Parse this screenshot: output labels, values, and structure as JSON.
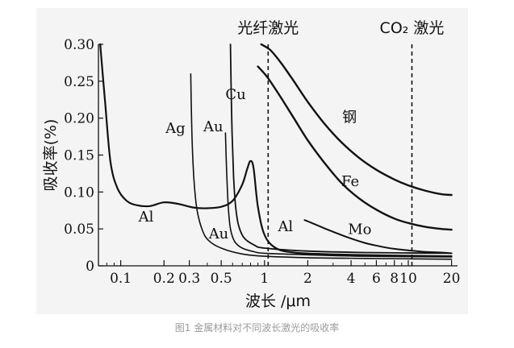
{
  "caption": "图1 金属材料对不同波长激光的吸收率",
  "chart_data": {
    "type": "line",
    "x_scale": "log",
    "xlabel": "波长 /μm",
    "ylabel": "吸收率(%)",
    "xlim": [
      0.07,
      22
    ],
    "ylim": [
      0,
      0.3
    ],
    "x_ticks": [
      {
        "value": 0.1,
        "label": "0.1"
      },
      {
        "value": 0.2,
        "label": "0.2"
      },
      {
        "value": 0.3,
        "label": "0.3"
      },
      {
        "value": 0.5,
        "label": "0.5"
      },
      {
        "value": 1,
        "label": "1"
      },
      {
        "value": 2,
        "label": "2"
      },
      {
        "value": 4,
        "label": "4"
      },
      {
        "value": 6,
        "label": "6"
      },
      {
        "value": 8,
        "label": "8"
      },
      {
        "value": 10,
        "label": "10"
      },
      {
        "value": 20,
        "label": "20"
      }
    ],
    "y_ticks": [
      {
        "value": 0,
        "label": "0"
      },
      {
        "value": 0.05,
        "label": "0.05"
      },
      {
        "value": 0.1,
        "label": "0.10"
      },
      {
        "value": 0.15,
        "label": "0.15"
      },
      {
        "value": 0.2,
        "label": "0.20"
      },
      {
        "value": 0.25,
        "label": "0.25"
      },
      {
        "value": 0.3,
        "label": "0.30"
      }
    ],
    "vlines": [
      {
        "x": 1.06,
        "label": "光纤激光"
      },
      {
        "x": 10.6,
        "label": "CO₂ 激光"
      }
    ],
    "series": [
      {
        "name": "钢",
        "x": [
          0.95,
          1.1,
          1.3,
          1.6,
          2,
          2.6,
          3.4,
          4.5,
          6,
          8,
          10,
          13,
          17,
          20
        ],
        "y": [
          0.3,
          0.292,
          0.275,
          0.25,
          0.222,
          0.193,
          0.168,
          0.147,
          0.13,
          0.117,
          0.109,
          0.102,
          0.097,
          0.096
        ]
      },
      {
        "name": "Fe",
        "x": [
          0.9,
          1.05,
          1.3,
          1.6,
          2,
          2.6,
          3.4,
          4.5,
          6,
          8,
          10,
          13,
          17,
          20
        ],
        "y": [
          0.27,
          0.255,
          0.228,
          0.2,
          0.17,
          0.14,
          0.113,
          0.092,
          0.076,
          0.064,
          0.058,
          0.053,
          0.05,
          0.049
        ]
      },
      {
        "name": "Mo",
        "x": [
          1.9,
          2.2,
          2.6,
          3.2,
          4,
          5,
          6.5,
          8,
          10,
          13,
          17,
          20
        ],
        "y": [
          0.062,
          0.057,
          0.051,
          0.044,
          0.037,
          0.031,
          0.026,
          0.023,
          0.021,
          0.019,
          0.018,
          0.017
        ]
      },
      {
        "name": "Al",
        "x": [
          0.072,
          0.078,
          0.085,
          0.095,
          0.11,
          0.13,
          0.16,
          0.2,
          0.25,
          0.32,
          0.4,
          0.5,
          0.6,
          0.7,
          0.76,
          0.8,
          0.84,
          0.9,
          1.0,
          1.2,
          1.6,
          2.5,
          4,
          8,
          20
        ],
        "y": [
          0.3,
          0.22,
          0.14,
          0.105,
          0.088,
          0.082,
          0.081,
          0.086,
          0.084,
          0.079,
          0.078,
          0.08,
          0.088,
          0.11,
          0.132,
          0.142,
          0.132,
          0.08,
          0.042,
          0.024,
          0.018,
          0.016,
          0.015,
          0.014,
          0.013
        ]
      },
      {
        "name": "Ag",
        "x": [
          0.307,
          0.31,
          0.315,
          0.325,
          0.34,
          0.37,
          0.41,
          0.5,
          0.7,
          1,
          2,
          5,
          20
        ],
        "y": [
          0.26,
          0.21,
          0.16,
          0.11,
          0.075,
          0.048,
          0.034,
          0.024,
          0.016,
          0.013,
          0.011,
          0.01,
          0.009
        ]
      },
      {
        "name": "Au",
        "x": [
          0.535,
          0.545,
          0.56,
          0.58,
          0.62,
          0.7,
          0.85,
          1,
          2,
          5,
          20
        ],
        "y": [
          0.18,
          0.13,
          0.08,
          0.05,
          0.033,
          0.024,
          0.019,
          0.017,
          0.015,
          0.013,
          0.012
        ]
      },
      {
        "name": "Cu",
        "x": [
          0.58,
          0.585,
          0.595,
          0.61,
          0.63,
          0.66,
          0.72,
          0.85,
          1,
          2,
          5,
          20
        ],
        "y": [
          0.3,
          0.25,
          0.18,
          0.12,
          0.08,
          0.055,
          0.038,
          0.028,
          0.024,
          0.02,
          0.018,
          0.017
        ]
      }
    ],
    "annotations": [
      {
        "text": "钢",
        "x": 3.9,
        "y": 0.195
      },
      {
        "text": "Fe",
        "x": 3.95,
        "y": 0.108
      },
      {
        "text": "Mo",
        "x": 4.6,
        "y": 0.043
      },
      {
        "text": "Al",
        "x": 0.15,
        "y": 0.06
      },
      {
        "text": "Al",
        "x": 1.4,
        "y": 0.047
      },
      {
        "text": "Ag",
        "x": 0.24,
        "y": 0.18
      },
      {
        "text": "Au",
        "x": 0.44,
        "y": 0.182
      },
      {
        "text": "Cu",
        "x": 0.63,
        "y": 0.226
      },
      {
        "text": "Au",
        "x": 0.48,
        "y": 0.037
      }
    ]
  }
}
